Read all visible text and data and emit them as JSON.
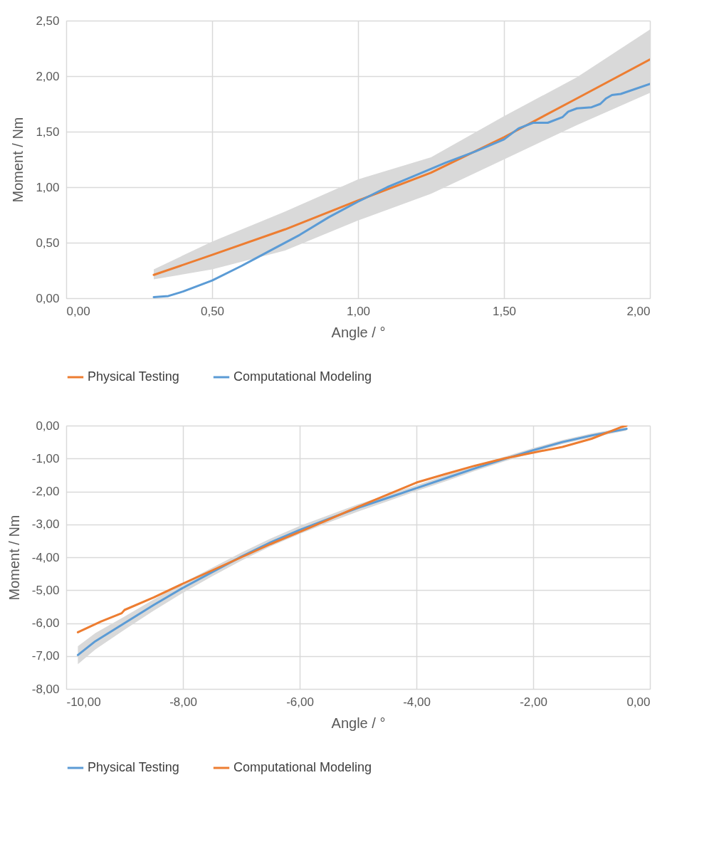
{
  "chart_data": [
    {
      "type": "line",
      "xlabel": "Angle / °",
      "ylabel": "Moment / Nm",
      "xlim": [
        0,
        2
      ],
      "xticks": [
        {
          "value": 0,
          "label": "0,00"
        },
        {
          "value": 0.5,
          "label": "0,50"
        },
        {
          "value": 1,
          "label": "1,00"
        },
        {
          "value": 1.5,
          "label": "1,50"
        },
        {
          "value": 2,
          "label": "2,00"
        }
      ],
      "ylim": [
        0,
        2.5
      ],
      "yticks": [
        {
          "value": 0,
          "label": "0,00"
        },
        {
          "value": 0.5,
          "label": "0,50"
        },
        {
          "value": 1,
          "label": "1,00"
        },
        {
          "value": 1.5,
          "label": "1,50"
        },
        {
          "value": 2,
          "label": "2,00"
        },
        {
          "value": 2.5,
          "label": "2,50"
        }
      ],
      "grid": true,
      "legend": "bottom",
      "series": [
        {
          "name": "Physical Testing",
          "color": "#ed7d31",
          "x": [
            0.3,
            0.5,
            0.75,
            1.0,
            1.25,
            1.5,
            1.75,
            2.0
          ],
          "values": [
            0.21,
            0.39,
            0.62,
            0.88,
            1.13,
            1.45,
            1.8,
            2.15
          ],
          "lower": [
            0.17,
            0.26,
            0.43,
            0.7,
            0.94,
            1.25,
            1.56,
            1.85
          ],
          "upper": [
            0.26,
            0.51,
            0.78,
            1.07,
            1.27,
            1.64,
            1.99,
            2.42
          ]
        },
        {
          "name": "Computational Modeling",
          "color": "#5b9bd5",
          "x": [
            0.3,
            0.35,
            0.4,
            0.5,
            0.6,
            0.65,
            0.7,
            0.8,
            0.9,
            1.0,
            1.1,
            1.2,
            1.3,
            1.4,
            1.5,
            1.55,
            1.6,
            1.65,
            1.7,
            1.72,
            1.75,
            1.8,
            1.83,
            1.85,
            1.87,
            1.9,
            2.0
          ],
          "values": [
            0.01,
            0.02,
            0.06,
            0.16,
            0.29,
            0.36,
            0.43,
            0.57,
            0.73,
            0.87,
            1.0,
            1.11,
            1.22,
            1.32,
            1.43,
            1.53,
            1.58,
            1.58,
            1.63,
            1.68,
            1.71,
            1.72,
            1.75,
            1.8,
            1.83,
            1.84,
            1.93
          ]
        }
      ]
    },
    {
      "type": "line",
      "xlabel": "Angle / °",
      "ylabel": "Moment / Nm",
      "xlim": [
        -10,
        0
      ],
      "xticks": [
        {
          "value": -10,
          "label": "-10,00"
        },
        {
          "value": -8,
          "label": "-8,00"
        },
        {
          "value": -6,
          "label": "-6,00"
        },
        {
          "value": -4,
          "label": "-4,00"
        },
        {
          "value": -2,
          "label": "-2,00"
        },
        {
          "value": 0,
          "label": "0,00"
        }
      ],
      "ylim": [
        -8,
        0
      ],
      "yticks": [
        {
          "value": -8,
          "label": "-8,00"
        },
        {
          "value": -7,
          "label": "-7,00"
        },
        {
          "value": -6,
          "label": "-6,00"
        },
        {
          "value": -5,
          "label": "-5,00"
        },
        {
          "value": -4,
          "label": "-4,00"
        },
        {
          "value": -3,
          "label": "-3,00"
        },
        {
          "value": -2,
          "label": "-2,00"
        },
        {
          "value": -1,
          "label": "-1,00"
        },
        {
          "value": 0,
          "label": "0,00"
        }
      ],
      "grid": true,
      "legend": "bottom",
      "series": [
        {
          "name": "Physical Testing",
          "color": "#5b9bd5",
          "x": [
            -9.8,
            -9.5,
            -9,
            -8.5,
            -8,
            -7.5,
            -7,
            -6.5,
            -6,
            -5.5,
            -5,
            -4.5,
            -4,
            -3.5,
            -3,
            -2.5,
            -2,
            -1.5,
            -1,
            -0.4
          ],
          "values": [
            -6.97,
            -6.55,
            -6.0,
            -5.45,
            -4.93,
            -4.45,
            -3.98,
            -3.55,
            -3.17,
            -2.83,
            -2.5,
            -2.2,
            -1.9,
            -1.6,
            -1.3,
            -1.02,
            -0.75,
            -0.5,
            -0.3,
            -0.1
          ],
          "lower": [
            -7.25,
            -6.8,
            -6.2,
            -5.62,
            -5.08,
            -4.58,
            -4.1,
            -3.67,
            -3.29,
            -2.94,
            -2.61,
            -2.3,
            -1.99,
            -1.69,
            -1.38,
            -1.09,
            -0.82,
            -0.56,
            -0.36,
            -0.15
          ],
          "upper": [
            -6.7,
            -6.3,
            -5.8,
            -5.28,
            -4.78,
            -4.32,
            -3.86,
            -3.43,
            -3.05,
            -2.72,
            -2.39,
            -2.1,
            -1.81,
            -1.51,
            -1.22,
            -0.95,
            -0.68,
            -0.44,
            -0.24,
            -0.05
          ]
        },
        {
          "name": "Computational Modeling",
          "color": "#ed7d31",
          "x": [
            -9.8,
            -9.4,
            -9.05,
            -9,
            -8.5,
            -8,
            -7.5,
            -7,
            -6.5,
            -6,
            -5.5,
            -5,
            -4.5,
            -4,
            -3.5,
            -3,
            -2.5,
            -2,
            -1.5,
            -1,
            -0.5,
            -0.4
          ],
          "values": [
            -6.28,
            -5.95,
            -5.7,
            -5.6,
            -5.22,
            -4.8,
            -4.4,
            -4.0,
            -3.6,
            -3.23,
            -2.85,
            -2.47,
            -2.1,
            -1.73,
            -1.47,
            -1.22,
            -1.0,
            -0.82,
            -0.65,
            -0.4,
            -0.05,
            0.0
          ]
        }
      ]
    }
  ]
}
